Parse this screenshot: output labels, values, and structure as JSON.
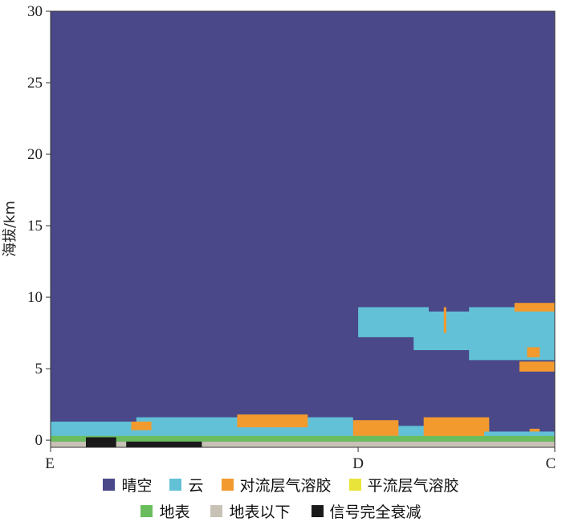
{
  "chart_data": {
    "type": "heatmap",
    "title": "",
    "xlabel": "",
    "ylabel": "海拔/km",
    "x_tick_labels": [
      "E",
      "D",
      "C"
    ],
    "y_ticks": [
      0,
      5,
      10,
      15,
      20,
      25,
      30
    ],
    "ylim": [
      -0.5,
      30
    ],
    "grid": false,
    "legend_position": "bottom",
    "background_class": "晴空",
    "classes": [
      {
        "name": "晴空",
        "color": "#4a4889"
      },
      {
        "name": "云",
        "color": "#62c1d7"
      },
      {
        "name": "对流层气溶胶",
        "color": "#f39a2e"
      },
      {
        "name": "平流层气溶胶",
        "color": "#e9e43a"
      },
      {
        "name": "地表",
        "color": "#6abd5c"
      },
      {
        "name": "地表以下",
        "color": "#c8c1b6"
      },
      {
        "name": "信号完全衰减",
        "color": "#1a1a1a"
      }
    ],
    "feature_regions": [
      {
        "class": "云",
        "x_from": 0.61,
        "x_to": 0.75,
        "alt_from": 7.2,
        "alt_to": 9.3
      },
      {
        "class": "云",
        "x_from": 0.72,
        "x_to": 0.92,
        "alt_from": 6.3,
        "alt_to": 9.0
      },
      {
        "class": "云",
        "x_from": 0.83,
        "x_to": 1.0,
        "alt_from": 5.6,
        "alt_to": 9.3
      },
      {
        "class": "对流层气溶胶",
        "x_from": 0.92,
        "x_to": 1.0,
        "alt_from": 9.0,
        "alt_to": 9.6
      },
      {
        "class": "对流层气溶胶",
        "x_from": 0.93,
        "x_to": 1.0,
        "alt_from": 4.8,
        "alt_to": 5.5
      },
      {
        "class": "对流层气溶胶",
        "x_from": 0.945,
        "x_to": 0.97,
        "alt_from": 5.8,
        "alt_to": 6.5
      },
      {
        "class": "对流层气溶胶",
        "x_from": 0.78,
        "x_to": 0.785,
        "alt_from": 7.5,
        "alt_to": 9.3
      },
      {
        "class": "云",
        "x_from": 0.0,
        "x_to": 0.6,
        "alt_from": 0.2,
        "alt_to": 1.3
      },
      {
        "class": "云",
        "x_from": 0.17,
        "x_to": 0.6,
        "alt_from": 0.3,
        "alt_to": 1.6
      },
      {
        "class": "云",
        "x_from": 0.6,
        "x_to": 0.87,
        "alt_from": 0.2,
        "alt_to": 1.0
      },
      {
        "class": "对流层气溶胶",
        "x_from": 0.16,
        "x_to": 0.2,
        "alt_from": 0.7,
        "alt_to": 1.3
      },
      {
        "class": "对流层气溶胶",
        "x_from": 0.37,
        "x_to": 0.51,
        "alt_from": 0.9,
        "alt_to": 1.8
      },
      {
        "class": "对流层气溶胶",
        "x_from": 0.6,
        "x_to": 0.69,
        "alt_from": 0.3,
        "alt_to": 1.4
      },
      {
        "class": "对流层气溶胶",
        "x_from": 0.74,
        "x_to": 0.87,
        "alt_from": 0.2,
        "alt_to": 1.6
      },
      {
        "class": "对流层气溶胶",
        "x_from": 0.95,
        "x_to": 0.97,
        "alt_from": 0.0,
        "alt_to": 0.8
      },
      {
        "class": "云",
        "x_from": 0.86,
        "x_to": 1.0,
        "alt_from": 0.0,
        "alt_to": 0.6
      },
      {
        "class": "地表",
        "x_from": 0.0,
        "x_to": 1.0,
        "alt_from": -0.1,
        "alt_to": 0.3
      },
      {
        "class": "地表以下",
        "x_from": 0.0,
        "x_to": 1.0,
        "alt_from": -0.5,
        "alt_to": -0.1
      },
      {
        "class": "信号完全衰减",
        "x_from": 0.07,
        "x_to": 0.13,
        "alt_from": -0.5,
        "alt_to": 0.2
      },
      {
        "class": "信号完全衰减",
        "x_from": 0.15,
        "x_to": 0.3,
        "alt_from": -0.5,
        "alt_to": -0.1
      }
    ]
  }
}
